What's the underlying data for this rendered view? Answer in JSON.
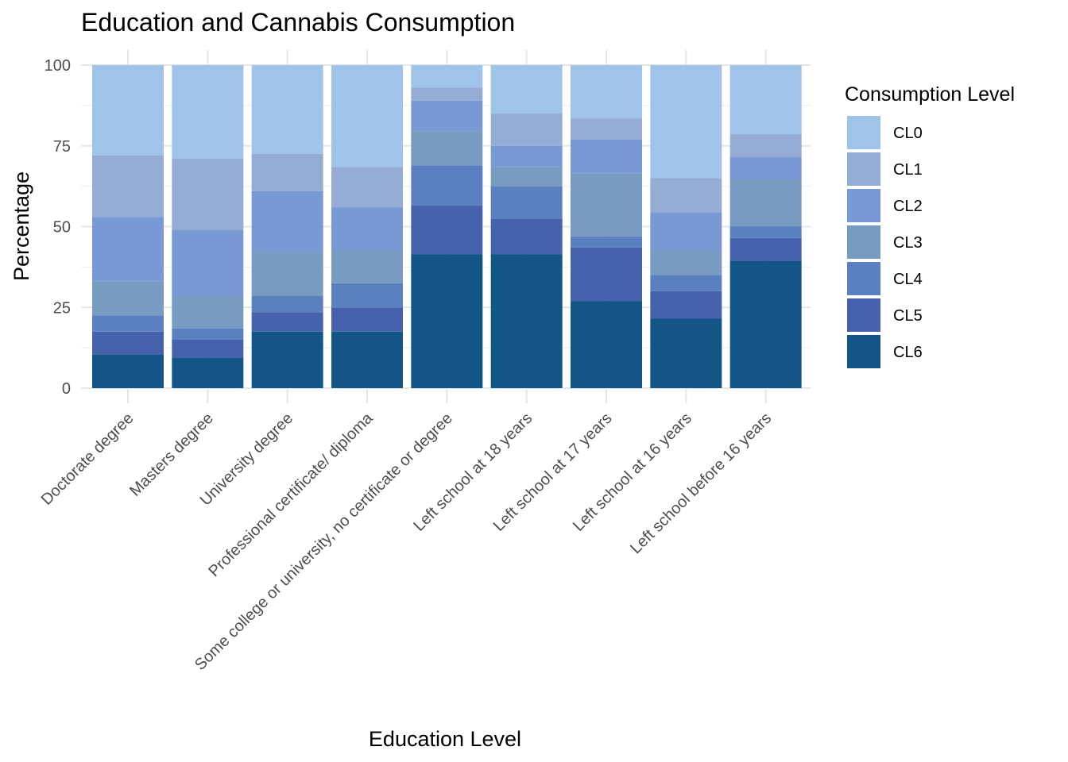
{
  "chart_data": {
    "type": "bar",
    "stacked": true,
    "title": "Education and Cannabis Consumption",
    "xlabel": "Education Level",
    "ylabel": "Percentage",
    "ylim": [
      0,
      100
    ],
    "yticks": [
      0,
      25,
      50,
      75,
      100
    ],
    "grid": true,
    "legend_title": "Consumption Level",
    "legend_position": "right",
    "categories": [
      "Doctorate degree",
      "Masters degree",
      "University degree",
      "Professional certificate/ diploma",
      "Some college or university, no certificate or degree",
      "Left school at 18 years",
      "Left school at 17 years",
      "Left school at 16 years",
      "Left school before 16 years"
    ],
    "series": [
      {
        "name": "CL6",
        "color": "#135587",
        "values": [
          10.5,
          9.5,
          17.5,
          17.5,
          41.5,
          41.5,
          27,
          21.5,
          39.5
        ]
      },
      {
        "name": "CL5",
        "color": "#4762ad",
        "values": [
          7,
          5.5,
          6,
          7.5,
          15,
          11,
          16.5,
          8.5,
          7
        ]
      },
      {
        "name": "CL4",
        "color": "#5b80c2",
        "values": [
          5,
          3.5,
          5,
          7.5,
          12.5,
          10,
          3.5,
          5,
          3.5
        ]
      },
      {
        "name": "CL3",
        "color": "#789bc1",
        "values": [
          10.5,
          10,
          13.5,
          10,
          10.5,
          6,
          19.5,
          7.5,
          14.5
        ]
      },
      {
        "name": "CL2",
        "color": "#7899d3",
        "values": [
          20,
          20.5,
          19,
          13.5,
          9.5,
          6.5,
          10.5,
          12,
          7
        ]
      },
      {
        "name": "CL1",
        "color": "#95acd5",
        "values": [
          19,
          22,
          11.5,
          12.5,
          4,
          10,
          6.5,
          10.5,
          7
        ]
      },
      {
        "name": "CL0",
        "color": "#a0c3e9",
        "values": [
          28,
          29,
          27.5,
          31.5,
          7,
          15,
          16.5,
          35,
          21.5
        ]
      }
    ]
  }
}
